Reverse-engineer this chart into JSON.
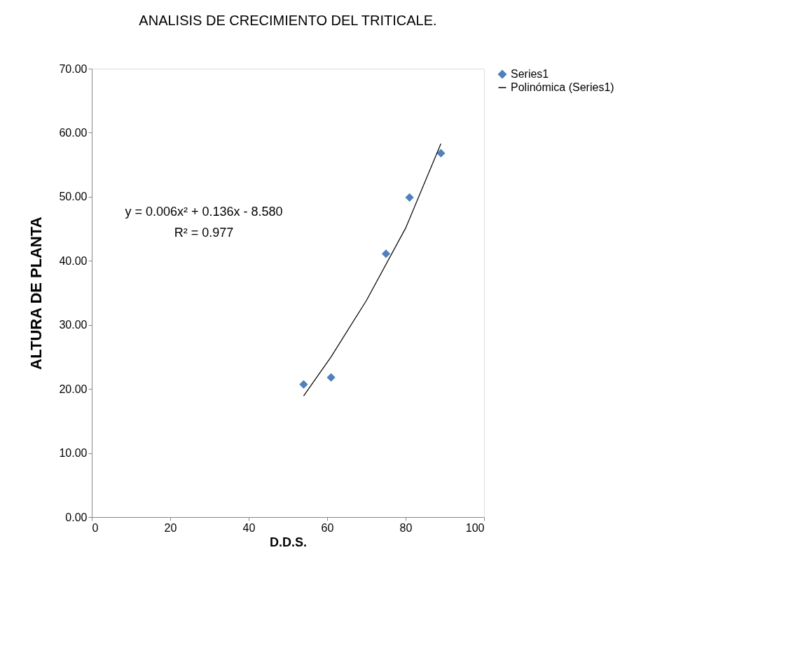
{
  "chart_data": {
    "type": "scatter",
    "title": "ANALISIS DE CRECIMIENTO DEL TRITICALE.",
    "xlabel": "D.D.S.",
    "ylabel": "ALTURA DE PLANTA",
    "series": [
      {
        "name": "Series1",
        "color": "#4f81bd",
        "marker": "diamond",
        "x": [
          54,
          61,
          75,
          81,
          89
        ],
        "values": [
          20.7,
          21.8,
          41.1,
          49.9,
          56.8
        ]
      },
      {
        "name": "Polinómica (Series1)",
        "type": "line",
        "color": "#000000",
        "marker": "none",
        "line_style": "solid",
        "x": [
          54,
          61,
          70,
          80,
          89
        ],
        "values": [
          18.9,
          25.0,
          33.8,
          45.1,
          58.3
        ]
      }
    ],
    "xlim": [
      0,
      100
    ],
    "xticks": [
      0,
      20,
      40,
      60,
      80,
      100
    ],
    "ylim": [
      0,
      70
    ],
    "yticks": [
      {
        "value": 0,
        "label": "0.00"
      },
      {
        "value": 10,
        "label": "10.00"
      },
      {
        "value": 20,
        "label": "20.00"
      },
      {
        "value": 30,
        "label": "30.00"
      },
      {
        "value": 40,
        "label": "40.00"
      },
      {
        "value": 50,
        "label": "50.00"
      },
      {
        "value": 60,
        "label": "60.00"
      },
      {
        "value": 70,
        "label": "70.00"
      }
    ],
    "annotations": [
      "y = 0.006x² + 0.136x - 8.580",
      "R² = 0.977"
    ],
    "grid": false,
    "legend": "right"
  }
}
